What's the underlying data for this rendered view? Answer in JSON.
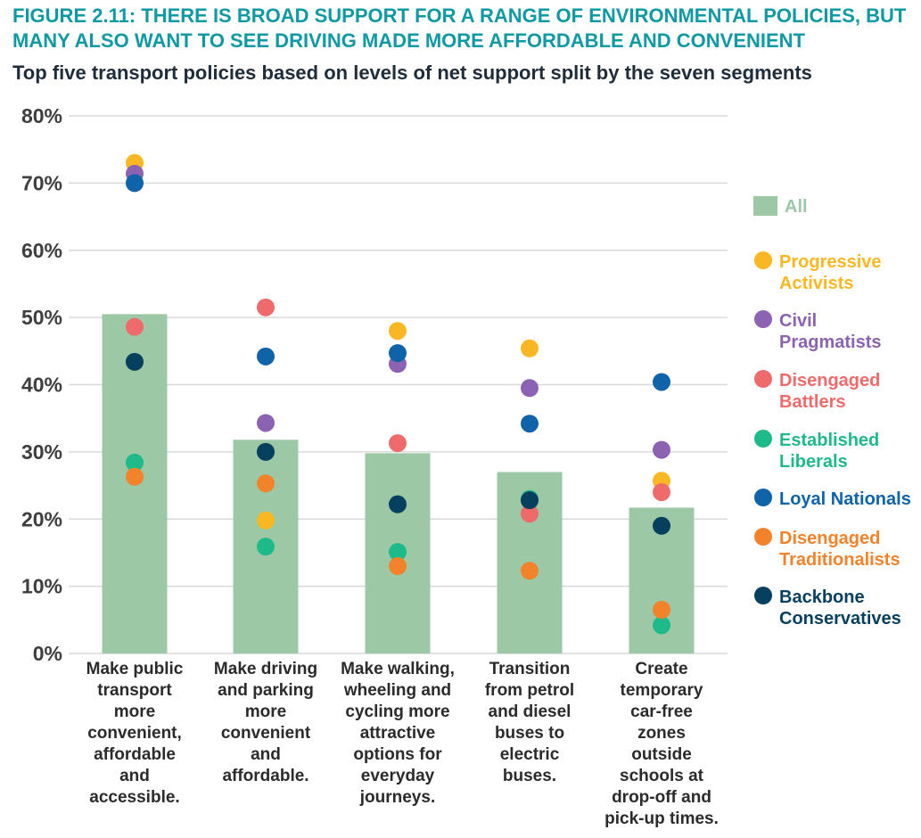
{
  "title_lines": [
    "FIGURE 2.11: THERE IS BROAD SUPPORT FOR A RANGE OF ENVIRONMENTAL POLICIES, BUT",
    "MANY ALSO WANT TO SEE DRIVING MADE MORE AFFORDABLE AND CONVENIENT"
  ],
  "subtitle": "Top five transport policies based on levels of net support split by the seven segments",
  "colors": {
    "title": "#0f9aa3",
    "bar": "#9cc8a5",
    "grid": "#d9d9d9"
  },
  "chart_data": {
    "type": "bar",
    "ylim": [
      0,
      80
    ],
    "yticks": [
      0,
      10,
      20,
      30,
      40,
      50,
      60,
      70,
      80
    ],
    "ytick_labels": [
      "0%",
      "10%",
      "20%",
      "30%",
      "40%",
      "50%",
      "60%",
      "70%",
      "80%"
    ],
    "grid": true,
    "legend_position": "right",
    "categories": [
      [
        "Make public",
        "transport",
        "more",
        "convenient,",
        "affordable",
        "and",
        "accessible."
      ],
      [
        "Make driving",
        "and parking",
        "more",
        "convenient",
        "and",
        "affordable."
      ],
      [
        "Make walking,",
        "wheeling and",
        "cycling more",
        "attractive",
        "options for",
        "everyday",
        "journeys."
      ],
      [
        "Transition",
        "from petrol",
        "and diesel",
        "buses to",
        "electric",
        "buses."
      ],
      [
        "Create",
        "temporary",
        "car-free",
        "zones",
        "outside",
        "schools at",
        "drop-off and",
        "pick-up times."
      ]
    ],
    "bar_series": {
      "name": "All",
      "color": "#9cc8a5",
      "values": [
        50.5,
        31.8,
        29.8,
        27.0,
        21.7
      ]
    },
    "series": [
      {
        "name_lines": [
          "Progressive",
          "Activists"
        ],
        "color": "#f9b823",
        "values": [
          73.0,
          19.8,
          48.0,
          45.4,
          25.7
        ]
      },
      {
        "name_lines": [
          "Civil",
          "Pragmatists"
        ],
        "color": "#8b63b2",
        "values": [
          71.4,
          34.3,
          43.1,
          39.5,
          30.3
        ]
      },
      {
        "name_lines": [
          "Disengaged",
          "Battlers"
        ],
        "color": "#ef6b6b",
        "values": [
          48.6,
          51.5,
          31.3,
          20.8,
          24.0
        ]
      },
      {
        "name_lines": [
          "Established",
          "Liberals"
        ],
        "color": "#1fba8a",
        "values": [
          28.4,
          15.9,
          15.1,
          23.0,
          4.2
        ]
      },
      {
        "name_lines": [
          "Loyal Nationals"
        ],
        "color": "#0f63a8",
        "values": [
          70.0,
          44.2,
          44.7,
          34.2,
          40.4
        ]
      },
      {
        "name_lines": [
          "Disengaged",
          "Traditionalists"
        ],
        "color": "#f2832b",
        "values": [
          26.3,
          25.3,
          13.0,
          12.3,
          6.5
        ]
      },
      {
        "name_lines": [
          "Backbone",
          "Conservatives"
        ],
        "color": "#073f5e",
        "values": [
          43.4,
          30.0,
          22.2,
          22.8,
          19.0
        ]
      }
    ]
  }
}
